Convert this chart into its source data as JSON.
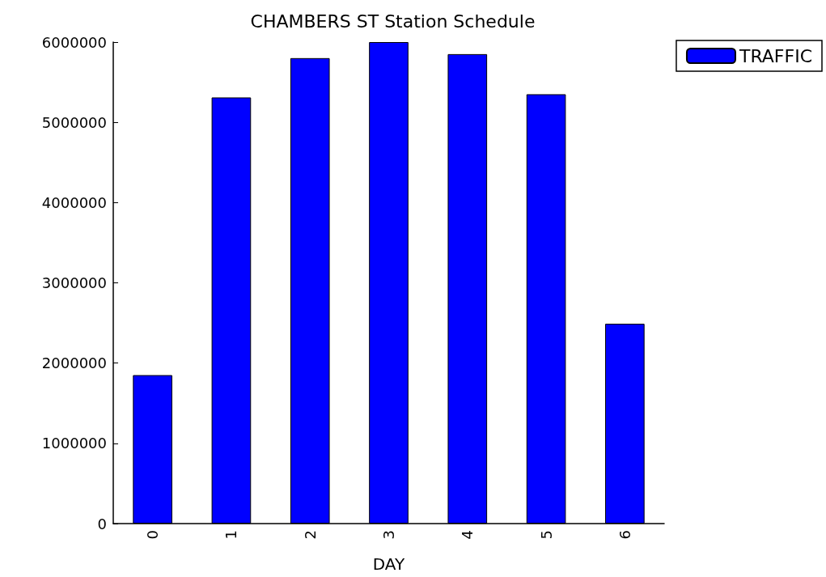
{
  "chart_data": {
    "type": "bar",
    "title": "CHAMBERS ST Station Schedule",
    "xlabel": "DAY",
    "categories": [
      "0",
      "1",
      "2",
      "3",
      "4",
      "5",
      "6"
    ],
    "series": [
      {
        "name": "TRAFFIC",
        "color": "#0000ff",
        "values": [
          1850000,
          5310000,
          5800000,
          6000000,
          5850000,
          5350000,
          2490000
        ]
      }
    ],
    "ylim": [
      0,
      6000000
    ],
    "yticks": [
      0,
      1000000,
      2000000,
      3000000,
      4000000,
      5000000,
      6000000
    ],
    "grid": false,
    "legend": "top right"
  }
}
